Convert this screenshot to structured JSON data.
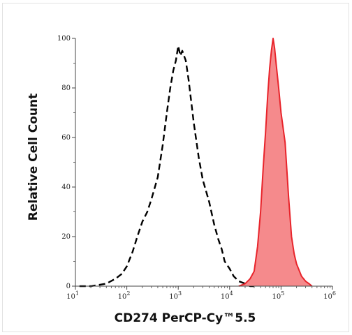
{
  "chart_data": {
    "type": "area",
    "xlabel": "CD274 PerCP-Cy™5.5",
    "ylabel": "Relative Cell Count",
    "x_scale": "log",
    "xlim": [
      10,
      1000000
    ],
    "ylim": [
      0,
      100
    ],
    "x_ticks": [
      {
        "value": 10,
        "base": "10",
        "exp": "1"
      },
      {
        "value": 100,
        "base": "10",
        "exp": "2"
      },
      {
        "value": 1000,
        "base": "10",
        "exp": "3"
      },
      {
        "value": 10000,
        "base": "10",
        "exp": "4"
      },
      {
        "value": 100000,
        "base": "10",
        "exp": "5"
      },
      {
        "value": 1000000,
        "base": "10",
        "exp": "6"
      }
    ],
    "y_ticks": [
      0,
      20,
      40,
      60,
      80,
      100
    ],
    "grid": false,
    "series": [
      {
        "style": "dashed",
        "color": "#000000",
        "fill": "none",
        "x": [
          12,
          20,
          40,
          60,
          80,
          100,
          130,
          160,
          200,
          250,
          300,
          400,
          500,
          600,
          700,
          800,
          900,
          1000,
          1100,
          1200,
          1400,
          1600,
          1800,
          2000,
          2500,
          3000,
          4000,
          5000,
          6000,
          7000,
          8000,
          10000,
          12000,
          15000,
          20000,
          25000,
          30000
        ],
        "y": [
          0,
          0,
          1,
          3,
          5,
          8,
          14,
          20,
          26,
          30,
          35,
          44,
          57,
          70,
          80,
          87,
          91,
          97,
          93,
          95,
          91,
          83,
          74,
          66,
          52,
          43,
          34,
          25,
          19,
          15,
          10,
          7,
          4,
          2,
          1,
          0,
          0
        ]
      },
      {
        "style": "solid",
        "color": "#e8242b",
        "fill": "#f58a8c",
        "x": [
          15000,
          20000,
          25000,
          30000,
          35000,
          40000,
          45000,
          50000,
          55000,
          60000,
          65000,
          70000,
          75000,
          80000,
          90000,
          100000,
          120000,
          140000,
          160000,
          180000,
          200000,
          250000,
          300000,
          350000,
          400000
        ],
        "y": [
          0,
          1,
          3,
          6,
          16,
          30,
          48,
          62,
          77,
          88,
          95,
          100,
          96,
          90,
          80,
          70,
          58,
          36,
          20,
          13,
          9,
          4,
          2,
          1,
          0
        ]
      }
    ]
  }
}
